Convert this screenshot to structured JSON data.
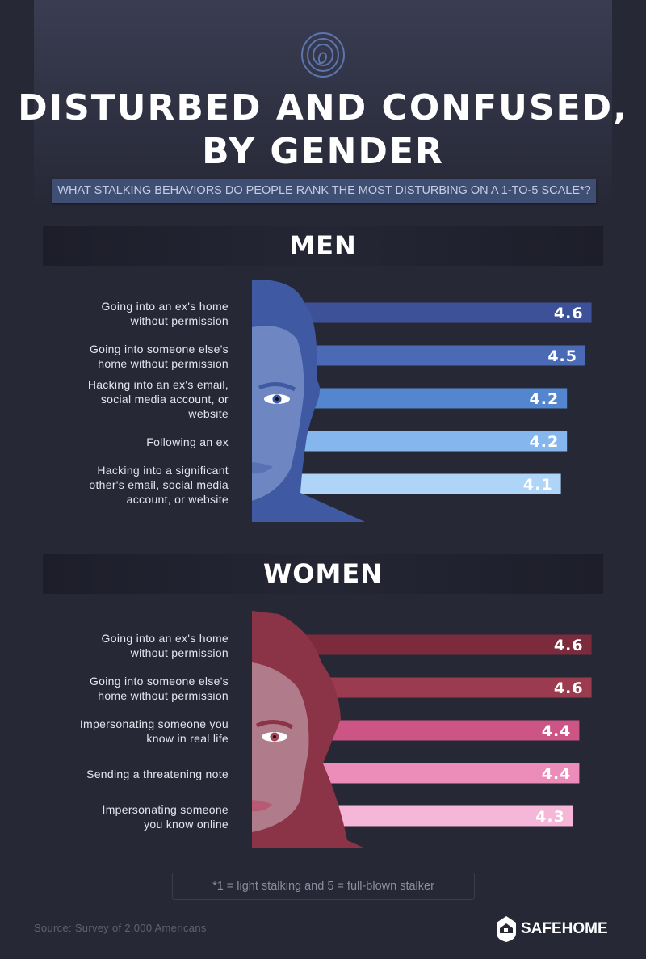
{
  "header": {
    "title_line1": "DISTURBED AND CONFUSED,",
    "title_line2": "BY GENDER",
    "subtitle": "WHAT STALKING BEHAVIORS DO PEOPLE RANK THE MOST DISTURBING ON A 1-TO-5 SCALE*?"
  },
  "chart_data": [
    {
      "type": "bar",
      "title": "MEN",
      "categories": [
        "Going into an ex's home without permission",
        "Going into someone else's home without permission",
        "Hacking into an ex's email, social media account, or website",
        "Following an ex",
        "Hacking into a significant other's email, social media account, or website"
      ],
      "label_lines": [
        [
          "Going into an ex's home",
          "without permission"
        ],
        [
          "Going into someone else's",
          "home without permission"
        ],
        [
          "Hacking into an ex's email,",
          "social media account, or",
          "website"
        ],
        [
          "Following an ex"
        ],
        [
          "Hacking into a significant",
          "other's email, social media",
          "account, or website"
        ]
      ],
      "values": [
        4.6,
        4.5,
        4.2,
        4.2,
        4.1
      ],
      "value_labels": [
        "4.6",
        "4.5",
        "4.2",
        "4.2",
        "4.1"
      ],
      "colors": [
        "#3d5199",
        "#4a6ab6",
        "#5486d0",
        "#86b6ee",
        "#aed4f7"
      ],
      "hair_color": "#3f5aa2",
      "face_color": "#6e86c2",
      "xlim": [
        0,
        5
      ]
    },
    {
      "type": "bar",
      "title": "WOMEN",
      "categories": [
        "Going into an ex's home without permission",
        "Going into someone else's home without permission",
        "Impersonating someone you know in real life",
        "Sending a threatening note",
        "Impersonating someone you know online"
      ],
      "label_lines": [
        [
          "Going into an ex's home",
          "without permission"
        ],
        [
          "Going into someone else's",
          "home without permission"
        ],
        [
          "Impersonating someone you",
          "know in real life"
        ],
        [
          "Sending a threatening note"
        ],
        [
          "Impersonating someone",
          "you know online"
        ]
      ],
      "values": [
        4.6,
        4.6,
        4.4,
        4.4,
        4.3
      ],
      "value_labels": [
        "4.6",
        "4.6",
        "4.4",
        "4.4",
        "4.3"
      ],
      "colors": [
        "#7b2b3b",
        "#9b3b50",
        "#cc5585",
        "#ec8cb9",
        "#f5b6d8"
      ],
      "hair_color": "#8c3447",
      "face_color": "#b07b8b",
      "xlim": [
        0,
        5
      ]
    }
  ],
  "footnote": "*1 = light stalking and 5 = full-blown stalker",
  "source": "Source: Survey of 2,000 Americans",
  "logo": "SAFEHOME"
}
